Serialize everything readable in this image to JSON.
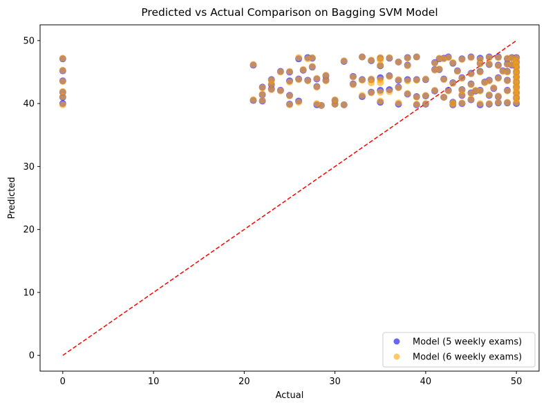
{
  "chart_data": {
    "type": "scatter",
    "title": "Predicted vs Actual Comparison on Bagging SVM Model",
    "xlabel": "Actual",
    "ylabel": "Predicted",
    "xlim": [
      -2.5,
      52.5
    ],
    "ylim": [
      -2.5,
      52.5
    ],
    "xticks": [
      0,
      10,
      20,
      30,
      40,
      50
    ],
    "yticks": [
      0,
      10,
      20,
      30,
      40,
      50
    ],
    "grid": false,
    "legend_position": "lower-right",
    "reference_line": {
      "x": [
        0,
        50
      ],
      "y": [
        0,
        50
      ],
      "color": "#ff0000",
      "style": "dashed"
    },
    "series": [
      {
        "name": "Model (5 weekly exams)",
        "color": "#0000ff",
        "alpha": 0.6,
        "points": [
          [
            0,
            47.1
          ],
          [
            0,
            45.2
          ],
          [
            0,
            43.6
          ],
          [
            0,
            41.8
          ],
          [
            0,
            41.0
          ],
          [
            0,
            40.0
          ],
          [
            21,
            46.1
          ],
          [
            21,
            40.5
          ],
          [
            22,
            41.4
          ],
          [
            22,
            40.4
          ],
          [
            22,
            42.6
          ],
          [
            23,
            43.0
          ],
          [
            23,
            43.8
          ],
          [
            23,
            42.3
          ],
          [
            24,
            45.1
          ],
          [
            24,
            42.1
          ],
          [
            25,
            45.0
          ],
          [
            25,
            43.6
          ],
          [
            25,
            41.3
          ],
          [
            25,
            39.9
          ],
          [
            26,
            47.1
          ],
          [
            26,
            43.9
          ],
          [
            26,
            40.4
          ],
          [
            26.5,
            45.3
          ],
          [
            27,
            47.3
          ],
          [
            27,
            43.7
          ],
          [
            27.5,
            47.2
          ],
          [
            27.5,
            45.8
          ],
          [
            28,
            43.9
          ],
          [
            28,
            42.7
          ],
          [
            28,
            39.8
          ],
          [
            28.5,
            39.7
          ],
          [
            29,
            44.4
          ],
          [
            29,
            43.7
          ],
          [
            30,
            40.5
          ],
          [
            30,
            39.9
          ],
          [
            31,
            46.7
          ],
          [
            31,
            39.8
          ],
          [
            32,
            44.3
          ],
          [
            32,
            43.1
          ],
          [
            33,
            47.4
          ],
          [
            33,
            43.8
          ],
          [
            33,
            41.1
          ],
          [
            34,
            46.8
          ],
          [
            34,
            43.8
          ],
          [
            34,
            41.8
          ],
          [
            35,
            47.2
          ],
          [
            35,
            46.0
          ],
          [
            35,
            44.1
          ],
          [
            35,
            42.1
          ],
          [
            35,
            40.2
          ],
          [
            36,
            47.2
          ],
          [
            36,
            44.4
          ],
          [
            36,
            42.2
          ],
          [
            37,
            46.6
          ],
          [
            37,
            43.7
          ],
          [
            37,
            42.6
          ],
          [
            37,
            39.9
          ],
          [
            38,
            47.3
          ],
          [
            38,
            46.1
          ],
          [
            38,
            43.8
          ],
          [
            38,
            41.5
          ],
          [
            39,
            47.4
          ],
          [
            39,
            43.8
          ],
          [
            39,
            41.1
          ],
          [
            39,
            39.8
          ],
          [
            40,
            43.8
          ],
          [
            40,
            41.2
          ],
          [
            40,
            39.9
          ],
          [
            41,
            46.5
          ],
          [
            41,
            45.4
          ],
          [
            41,
            42.0
          ],
          [
            41.5,
            47.1
          ],
          [
            41.5,
            45.4
          ],
          [
            42,
            47.2
          ],
          [
            42,
            43.9
          ],
          [
            42,
            41.0
          ],
          [
            42.5,
            47.4
          ],
          [
            42.5,
            42.1
          ],
          [
            43,
            46.4
          ],
          [
            43,
            43.3
          ],
          [
            43,
            40.2
          ],
          [
            43,
            39.8
          ],
          [
            43.5,
            45.2
          ],
          [
            44,
            47.1
          ],
          [
            44,
            44.1
          ],
          [
            44,
            42.2
          ],
          [
            44,
            41.3
          ],
          [
            44,
            40.0
          ],
          [
            45,
            47.4
          ],
          [
            45,
            44.8
          ],
          [
            45,
            43.1
          ],
          [
            45,
            41.7
          ],
          [
            45,
            40.6
          ],
          [
            45.5,
            42.0
          ],
          [
            46,
            47.2
          ],
          [
            46,
            46.4
          ],
          [
            46,
            45.1
          ],
          [
            46,
            42.1
          ],
          [
            46,
            39.8
          ],
          [
            46.5,
            43.4
          ],
          [
            47,
            47.4
          ],
          [
            47,
            46.2
          ],
          [
            47,
            43.7
          ],
          [
            47,
            41.3
          ],
          [
            47,
            39.9
          ],
          [
            47.5,
            42.4
          ],
          [
            48,
            47.4
          ],
          [
            48,
            46.1
          ],
          [
            48,
            44.1
          ],
          [
            48,
            41.1
          ],
          [
            48,
            40.1
          ],
          [
            48.5,
            45.2
          ],
          [
            49,
            47.1
          ],
          [
            49,
            46.3
          ],
          [
            49,
            45.1
          ],
          [
            49,
            43.7
          ],
          [
            49,
            42.1
          ],
          [
            49,
            40.1
          ],
          [
            49.5,
            47.3
          ],
          [
            49.5,
            46.1
          ],
          [
            50,
            47.3
          ],
          [
            50,
            46.6
          ],
          [
            50,
            45.8
          ],
          [
            50,
            45.0
          ],
          [
            50,
            44.2
          ],
          [
            50,
            43.4
          ],
          [
            50,
            42.6
          ],
          [
            50,
            41.7
          ],
          [
            50,
            40.9
          ],
          [
            50,
            40.0
          ]
        ]
      },
      {
        "name": "Model (6 weekly exams)",
        "color": "#ffa500",
        "alpha": 0.6,
        "points": [
          [
            0,
            47.2
          ],
          [
            0,
            45.3
          ],
          [
            0,
            43.5
          ],
          [
            0,
            41.9
          ],
          [
            0,
            41.1
          ],
          [
            0,
            39.8
          ],
          [
            21,
            46.2
          ],
          [
            21,
            40.6
          ],
          [
            22,
            41.5
          ],
          [
            22,
            40.5
          ],
          [
            22,
            42.5
          ],
          [
            23,
            43.1
          ],
          [
            23,
            43.7
          ],
          [
            23,
            42.2
          ],
          [
            24,
            45.0
          ],
          [
            24,
            42.0
          ],
          [
            25,
            45.1
          ],
          [
            25,
            43.4
          ],
          [
            25,
            41.2
          ],
          [
            25,
            39.8
          ],
          [
            26,
            47.3
          ],
          [
            26,
            43.8
          ],
          [
            26,
            40.2
          ],
          [
            26.5,
            45.4
          ],
          [
            27,
            47.1
          ],
          [
            27,
            43.6
          ],
          [
            27.5,
            47.3
          ],
          [
            27.5,
            45.9
          ],
          [
            28,
            44.0
          ],
          [
            28,
            42.6
          ],
          [
            28,
            40.0
          ],
          [
            28.5,
            39.7
          ],
          [
            29,
            44.5
          ],
          [
            29,
            43.6
          ],
          [
            30,
            40.6
          ],
          [
            30,
            39.9
          ],
          [
            31,
            46.8
          ],
          [
            31,
            39.8
          ],
          [
            32,
            44.2
          ],
          [
            32,
            43.0
          ],
          [
            33,
            47.4
          ],
          [
            33,
            43.7
          ],
          [
            33,
            41.3
          ],
          [
            34,
            46.9
          ],
          [
            34,
            43.9
          ],
          [
            34,
            43.3
          ],
          [
            34,
            41.7
          ],
          [
            35,
            47.3
          ],
          [
            35,
            46.9
          ],
          [
            35,
            46.1
          ],
          [
            35,
            43.8
          ],
          [
            35,
            43.3
          ],
          [
            35,
            41.8
          ],
          [
            35,
            40.4
          ],
          [
            36,
            47.3
          ],
          [
            36,
            44.3
          ],
          [
            36,
            41.9
          ],
          [
            37,
            46.6
          ],
          [
            37,
            43.8
          ],
          [
            37,
            42.5
          ],
          [
            37,
            40.1
          ],
          [
            38,
            47.2
          ],
          [
            38,
            46.0
          ],
          [
            38,
            43.6
          ],
          [
            38,
            41.6
          ],
          [
            39,
            47.4
          ],
          [
            39,
            43.7
          ],
          [
            39,
            41.0
          ],
          [
            39,
            39.9
          ],
          [
            40,
            43.9
          ],
          [
            40,
            41.3
          ],
          [
            40,
            40.0
          ],
          [
            41,
            46.4
          ],
          [
            41,
            45.3
          ],
          [
            41,
            42.1
          ],
          [
            41.5,
            47.2
          ],
          [
            41.5,
            45.5
          ],
          [
            42,
            47.1
          ],
          [
            42,
            43.8
          ],
          [
            42,
            41.0
          ],
          [
            42.5,
            47.3
          ],
          [
            42.5,
            42.0
          ],
          [
            43,
            46.5
          ],
          [
            43,
            43.2
          ],
          [
            43,
            40.1
          ],
          [
            43,
            39.9
          ],
          [
            43.5,
            45.1
          ],
          [
            44,
            47.0
          ],
          [
            44,
            44.0
          ],
          [
            44,
            42.1
          ],
          [
            44,
            41.4
          ],
          [
            44,
            40.1
          ],
          [
            45,
            47.3
          ],
          [
            45,
            44.7
          ],
          [
            45,
            43.0
          ],
          [
            45,
            41.6
          ],
          [
            45,
            40.7
          ],
          [
            45.5,
            42.1
          ],
          [
            46,
            47.0
          ],
          [
            46,
            46.3
          ],
          [
            46,
            45.0
          ],
          [
            46,
            42.0
          ],
          [
            46,
            40.0
          ],
          [
            46.5,
            43.3
          ],
          [
            47,
            47.3
          ],
          [
            47,
            46.3
          ],
          [
            47,
            43.6
          ],
          [
            47,
            41.4
          ],
          [
            47,
            40.0
          ],
          [
            47.5,
            42.5
          ],
          [
            48,
            47.3
          ],
          [
            48,
            46.0
          ],
          [
            48,
            44.0
          ],
          [
            48,
            41.2
          ],
          [
            48,
            40.2
          ],
          [
            48.5,
            45.1
          ],
          [
            49,
            47.2
          ],
          [
            49,
            46.2
          ],
          [
            49,
            45.0
          ],
          [
            49,
            43.6
          ],
          [
            49,
            42.0
          ],
          [
            49,
            40.2
          ],
          [
            49.5,
            47.2
          ],
          [
            49.5,
            46.2
          ],
          [
            50,
            47.2
          ],
          [
            50,
            46.7
          ],
          [
            50,
            46.2
          ],
          [
            50,
            45.7
          ],
          [
            50,
            45.2
          ],
          [
            50,
            44.7
          ],
          [
            50,
            44.2
          ],
          [
            50,
            43.7
          ],
          [
            50,
            43.2
          ],
          [
            50,
            42.7
          ],
          [
            50,
            42.2
          ],
          [
            50,
            41.7
          ],
          [
            50,
            41.2
          ],
          [
            50,
            40.7
          ],
          [
            50,
            40.2
          ]
        ]
      }
    ]
  }
}
